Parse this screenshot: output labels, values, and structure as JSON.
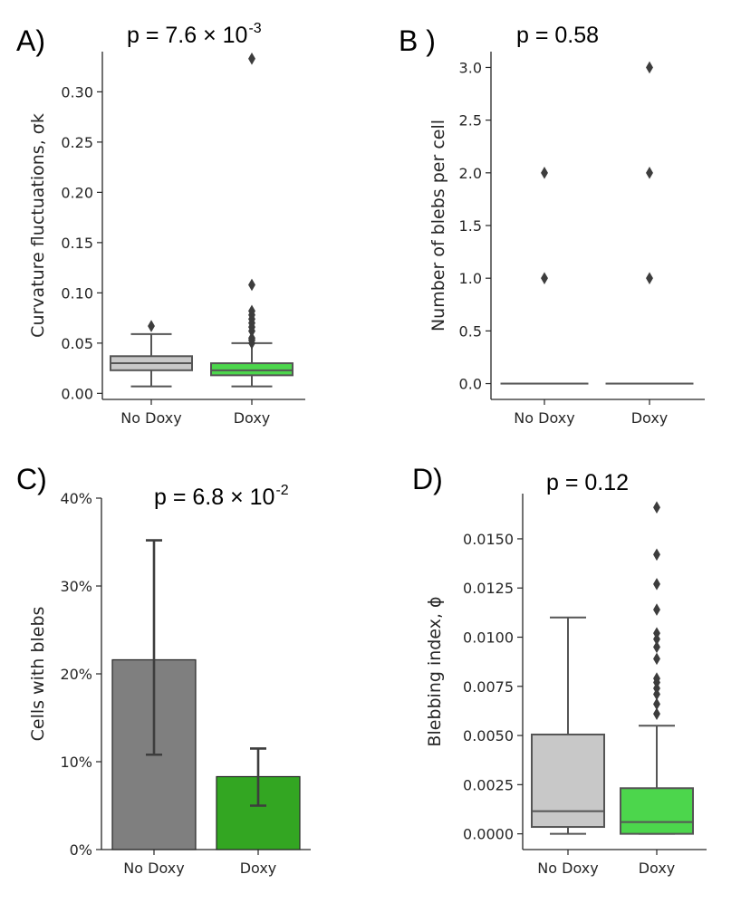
{
  "chart_data": [
    {
      "panel": "A)",
      "type": "box",
      "pvalue": {
        "text": "p = 7.6 × 10",
        "exp": "-3"
      },
      "ylabel": "Curvature fluctuations, σk",
      "ylim": [
        -0.006,
        0.34
      ],
      "yticks": [
        0.0,
        0.05,
        0.1,
        0.15,
        0.2,
        0.25,
        0.3
      ],
      "ytick_labels": [
        "0.00",
        "0.05",
        "0.10",
        "0.15",
        "0.20",
        "0.25",
        "0.30"
      ],
      "categories": [
        "No Doxy",
        "Doxy"
      ],
      "boxes": [
        {
          "name": "No Doxy",
          "color": "#c8c8c8",
          "whislo": 0.007,
          "q1": 0.023,
          "med": 0.03,
          "q3": 0.037,
          "whishi": 0.059,
          "fliers": [
            0.067
          ]
        },
        {
          "name": "Doxy",
          "color": "#4cd64c",
          "whislo": 0.007,
          "q1": 0.018,
          "med": 0.023,
          "q3": 0.03,
          "whishi": 0.05,
          "fliers": [
            0.05,
            0.053,
            0.055,
            0.062,
            0.066,
            0.07,
            0.074,
            0.078,
            0.082,
            0.108,
            0.333
          ]
        }
      ]
    },
    {
      "panel": "B )",
      "type": "box",
      "pvalue": {
        "text": "p = 0.58",
        "exp": ""
      },
      "ylabel": "Number of blebs per cell",
      "ylim": [
        -0.15,
        3.15
      ],
      "yticks": [
        0.0,
        0.5,
        1.0,
        1.5,
        2.0,
        2.5,
        3.0
      ],
      "ytick_labels": [
        "0.0",
        "0.5",
        "1.0",
        "1.5",
        "2.0",
        "2.5",
        "3.0"
      ],
      "categories": [
        "No Doxy",
        "Doxy"
      ],
      "boxes": [
        {
          "name": "No Doxy",
          "color": "#c8c8c8",
          "whislo": 0,
          "q1": 0,
          "med": 0,
          "q3": 0,
          "whishi": 0,
          "fliers": [
            1.0,
            2.0
          ]
        },
        {
          "name": "Doxy",
          "color": "#4cd64c",
          "whislo": 0,
          "q1": 0,
          "med": 0,
          "q3": 0,
          "whishi": 0,
          "fliers": [
            1.0,
            2.0,
            3.0
          ]
        }
      ]
    },
    {
      "panel": "C)",
      "type": "bar",
      "pvalue": {
        "text": "p = 6.8 × 10",
        "exp": "-2"
      },
      "ylabel": "Cells with blebs",
      "ylim": [
        0,
        40
      ],
      "yticks": [
        0,
        10,
        20,
        30,
        40
      ],
      "ytick_labels": [
        "0%",
        "10%",
        "20%",
        "30%",
        "40%"
      ],
      "categories": [
        "No Doxy",
        "Doxy"
      ],
      "values": [
        21.6,
        8.3
      ],
      "err_low": [
        10.8,
        5.0
      ],
      "err_high": [
        35.2,
        11.5
      ],
      "colors": [
        "#7f7f7f",
        "#33a622"
      ]
    },
    {
      "panel": "D)",
      "type": "box",
      "pvalue": {
        "text": "p = 0.12",
        "exp": ""
      },
      "ylabel": "Blebbing index, ϕ",
      "ylim": [
        -0.0008,
        0.0173
      ],
      "yticks": [
        0.0,
        0.0025,
        0.005,
        0.0075,
        0.01,
        0.0125,
        0.015
      ],
      "ytick_labels": [
        "0.0000",
        "0.0025",
        "0.0050",
        "0.0075",
        "0.0100",
        "0.0125",
        "0.0150"
      ],
      "categories": [
        "No Doxy",
        "Doxy"
      ],
      "boxes": [
        {
          "name": "No Doxy",
          "color": "#c8c8c8",
          "whislo": 0.0,
          "q1": 0.00035,
          "med": 0.00115,
          "q3": 0.00505,
          "whishi": 0.011,
          "fliers": []
        },
        {
          "name": "Doxy",
          "color": "#4cd64c",
          "whislo": 0.0,
          "q1": 0.0,
          "med": 0.0006,
          "q3": 0.00232,
          "whishi": 0.0055,
          "fliers": [
            0.0061,
            0.0066,
            0.0071,
            0.0074,
            0.0077,
            0.0079,
            0.0089,
            0.0095,
            0.0099,
            0.0102,
            0.0114,
            0.0127,
            0.0142,
            0.0166
          ]
        }
      ]
    }
  ]
}
